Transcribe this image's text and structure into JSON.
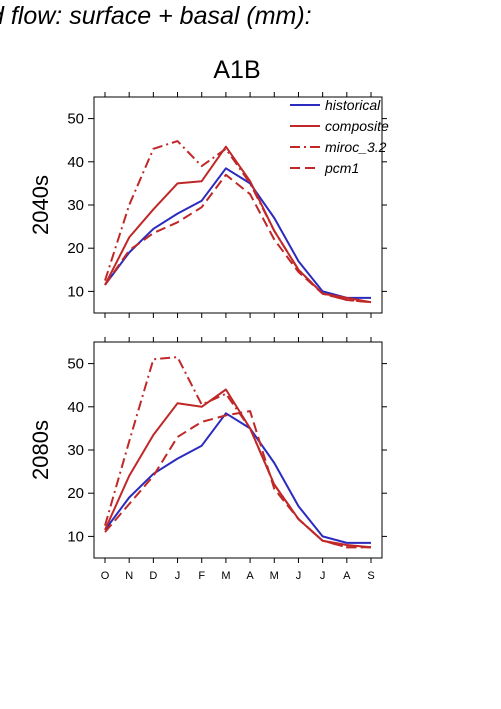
{
  "header": {
    "title": "d flow: surface + basal (mm):",
    "scenario": "A1B"
  },
  "colors": {
    "historical": "#2b2bbf",
    "future": "#c02828",
    "axis": "#000000"
  },
  "chart_data": [
    {
      "type": "line",
      "panel_label": "2040s",
      "x": [
        "O",
        "N",
        "D",
        "J",
        "F",
        "M",
        "A",
        "M",
        "J",
        "J",
        "A",
        "S"
      ],
      "ylim": [
        5,
        55
      ],
      "yticks": [
        10,
        20,
        30,
        40,
        50
      ],
      "legend": {
        "placement": "top-right",
        "entries": [
          "historical",
          "composite",
          "miroc_3.2",
          "pcm1"
        ]
      },
      "series": [
        {
          "name": "historical",
          "style": "solid",
          "color": "#2b2bbf",
          "values": [
            11.5,
            19.0,
            24.5,
            28.0,
            31.0,
            38.5,
            35.0,
            27.0,
            17.0,
            10.0,
            8.5,
            8.5
          ]
        },
        {
          "name": "composite",
          "style": "solid",
          "color": "#c02828",
          "values": [
            11.5,
            22.5,
            29.0,
            35.0,
            35.5,
            43.5,
            35.5,
            24.0,
            15.0,
            9.5,
            8.5,
            7.5
          ]
        },
        {
          "name": "miroc_3.2",
          "style": "dashdot",
          "color": "#c02828",
          "values": [
            12.5,
            30.0,
            43.0,
            44.8,
            39.0,
            43.0,
            35.0,
            24.0,
            15.0,
            9.5,
            8.0,
            7.5
          ]
        },
        {
          "name": "pcm1",
          "style": "dashed",
          "color": "#c02828",
          "values": [
            11.5,
            19.5,
            23.5,
            26.0,
            29.5,
            37.0,
            32.5,
            22.0,
            14.5,
            9.5,
            8.0,
            7.5
          ]
        }
      ]
    },
    {
      "type": "line",
      "panel_label": "2080s",
      "x": [
        "O",
        "N",
        "D",
        "J",
        "F",
        "M",
        "A",
        "M",
        "J",
        "J",
        "A",
        "S"
      ],
      "ylim": [
        5,
        55
      ],
      "yticks": [
        10,
        20,
        30,
        40,
        50
      ],
      "series": [
        {
          "name": "historical",
          "style": "solid",
          "color": "#2b2bbf",
          "values": [
            11.5,
            19.0,
            24.5,
            28.0,
            31.0,
            38.5,
            35.0,
            27.0,
            17.0,
            10.0,
            8.5,
            8.5
          ]
        },
        {
          "name": "composite",
          "style": "solid",
          "color": "#c02828",
          "values": [
            11.5,
            24.0,
            33.5,
            40.8,
            40.0,
            44.0,
            35.0,
            22.0,
            14.0,
            9.0,
            8.0,
            7.5
          ]
        },
        {
          "name": "miroc_3.2",
          "style": "dashdot",
          "color": "#c02828",
          "values": [
            12.5,
            32.0,
            51.0,
            51.5,
            40.5,
            43.0,
            35.0,
            22.0,
            14.0,
            9.0,
            7.5,
            7.5
          ]
        },
        {
          "name": "pcm1",
          "style": "dashed",
          "color": "#c02828",
          "values": [
            11.0,
            17.5,
            24.0,
            33.0,
            36.5,
            38.0,
            39.0,
            21.0,
            14.0,
            9.0,
            7.5,
            7.5
          ]
        }
      ]
    }
  ]
}
